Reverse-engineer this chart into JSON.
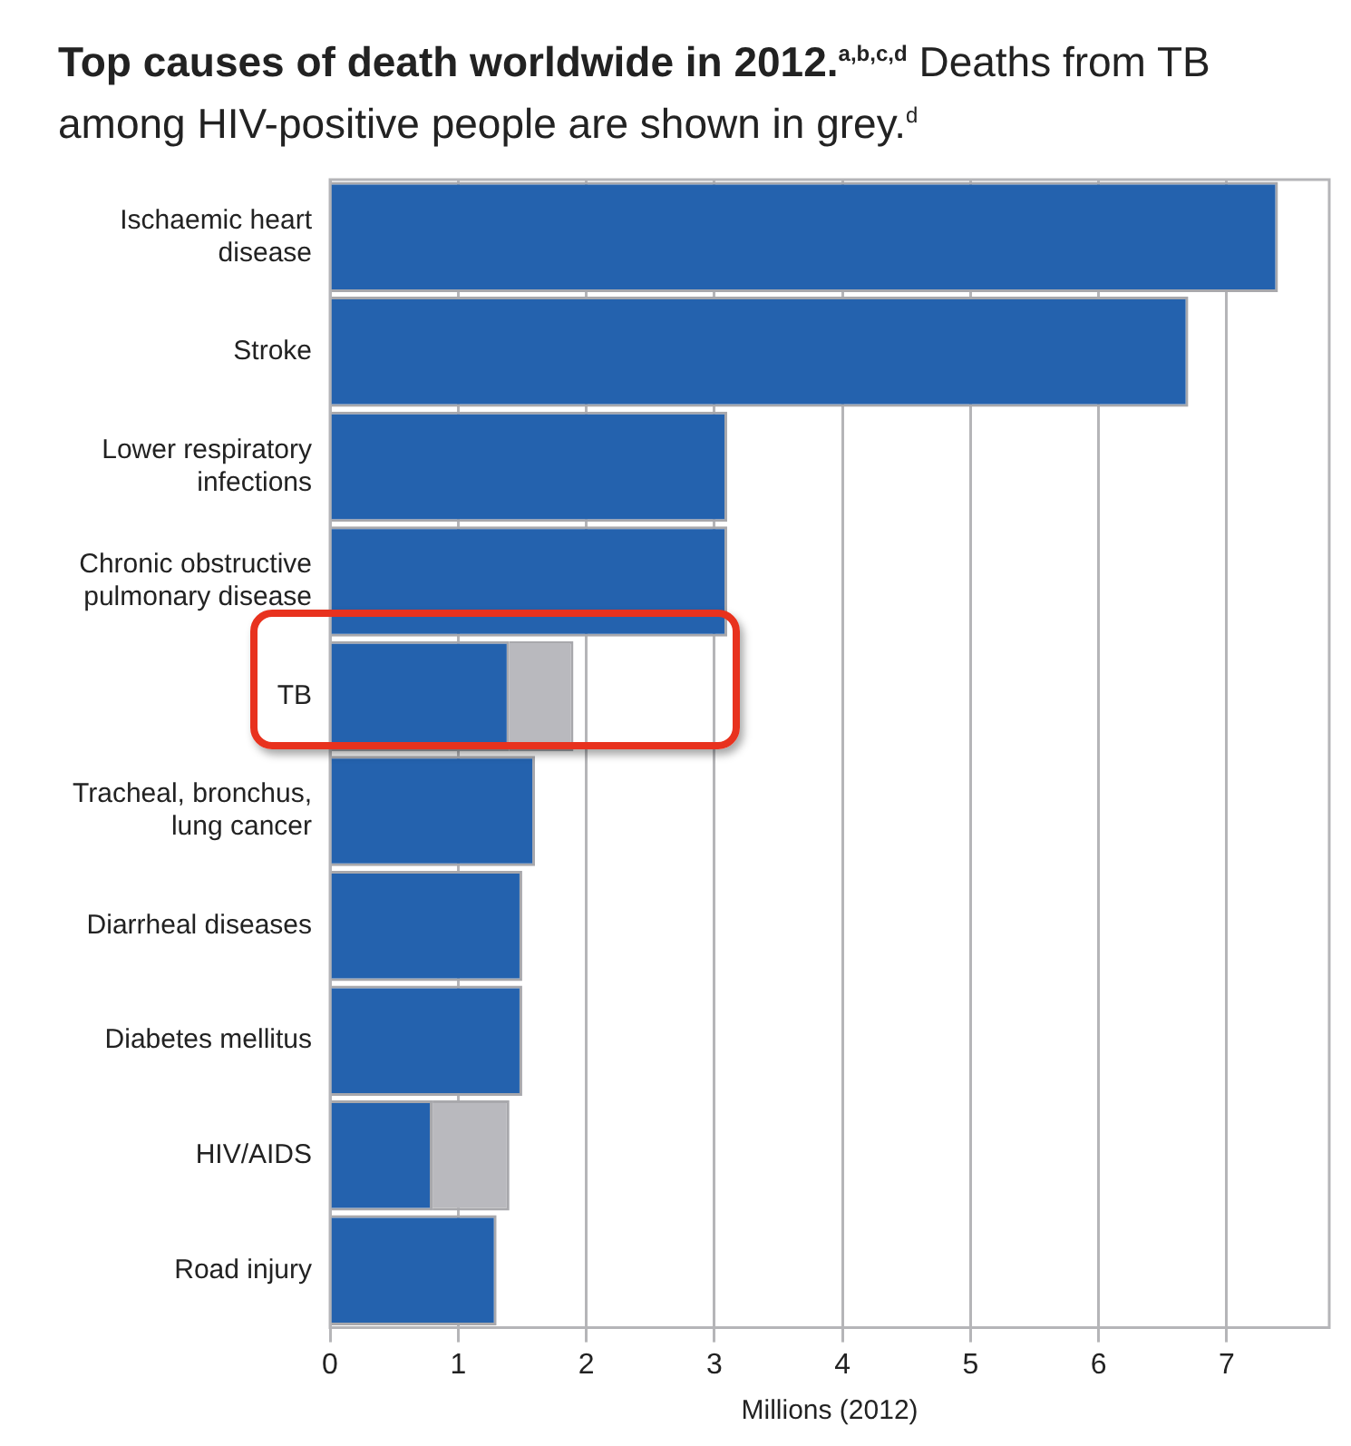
{
  "chart_data": {
    "type": "bar",
    "orientation": "horizontal",
    "stacked": true,
    "title": "Top causes of death worldwide in 2012.$^{a,b,c,d}$",
    "subtitle": "Deaths from TB among HIV-positive people are shown in grey.$^{d}$",
    "xlabel": "Millions (2012)",
    "categories": [
      "Ischaemic heart disease",
      "Stroke",
      "Lower respiratory infections",
      "Chronic obstructive pulmonary disease",
      "TB",
      "Tracheal, bronchus, lung cancer",
      "Diarrheal diseases",
      "Diabetes mellitus",
      "HIV/AIDS",
      "Road injury"
    ],
    "series": [
      {
        "color": "#2462ae",
        "values": [
          7.4,
          6.7,
          3.1,
          3.1,
          1.4,
          1.6,
          1.5,
          1.5,
          0.8,
          1.3
        ]
      },
      {
        "color": "#b9b9be",
        "values": [
          null,
          null,
          null,
          null,
          0.5,
          null,
          null,
          null,
          0.6,
          null
        ]
      }
    ],
    "xlim": [
      0,
      7.8
    ],
    "xticks": [
      0,
      1,
      2,
      3,
      4,
      5,
      6,
      7
    ],
    "grid": "x",
    "legend": false
  }
}
